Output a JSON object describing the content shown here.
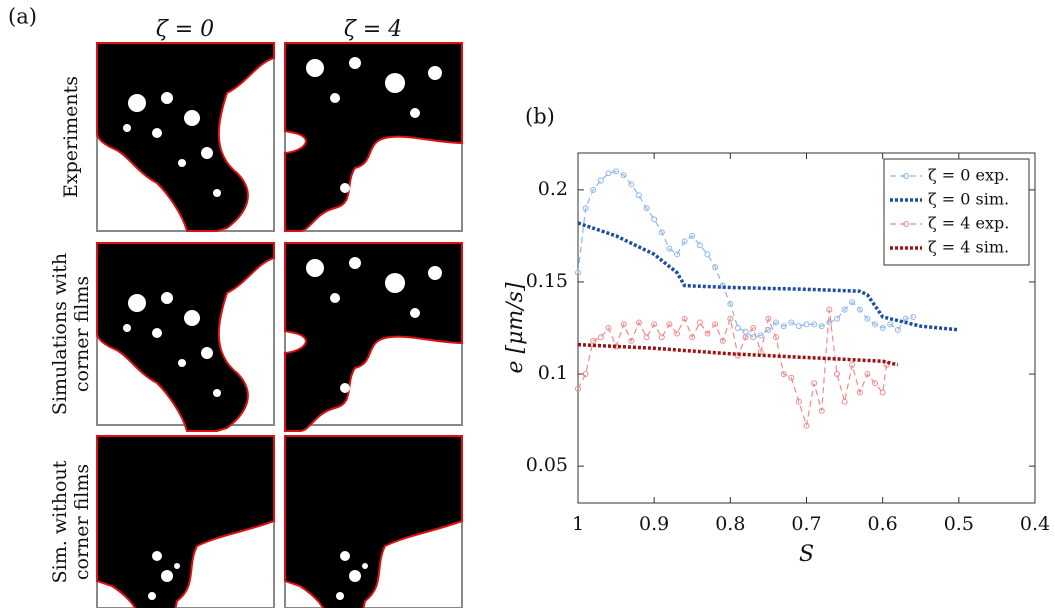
{
  "panel_a": {
    "label": "(a)",
    "columns": [
      "ζ = 0",
      "ζ = 4"
    ],
    "rows": [
      [
        "Experiments"
      ],
      [
        "Simulations with",
        "corner films"
      ],
      [
        "Sim.  without",
        "corner films"
      ]
    ]
  },
  "chart_data": {
    "type": "line",
    "panel_label": "(b)",
    "x_label": "S",
    "y_label": "e [μm/s]",
    "xlim": [
      1,
      0.4
    ],
    "xticks": [
      1,
      0.9,
      0.8,
      0.7,
      0.6,
      0.5,
      0.4
    ],
    "ylim": [
      0.03,
      0.22
    ],
    "yticks": [
      0.05,
      0.1,
      0.15,
      0.2
    ],
    "legend": "upper right",
    "series": [
      {
        "name": "ζ = 0 exp.",
        "color": "#8db6ec",
        "dash": "dashed",
        "marker": "circle",
        "x": [
          1,
          0.99,
          0.98,
          0.97,
          0.96,
          0.95,
          0.94,
          0.93,
          0.92,
          0.91,
          0.9,
          0.89,
          0.88,
          0.87,
          0.86,
          0.85,
          0.84,
          0.83,
          0.82,
          0.81,
          0.8,
          0.79,
          0.78,
          0.77,
          0.76,
          0.75,
          0.74,
          0.73,
          0.72,
          0.71,
          0.7,
          0.69,
          0.68,
          0.67,
          0.66,
          0.65,
          0.64,
          0.63,
          0.62,
          0.61,
          0.6,
          0.59,
          0.58,
          0.57,
          0.56
        ],
        "values": [
          0.155,
          0.19,
          0.2,
          0.205,
          0.209,
          0.21,
          0.208,
          0.203,
          0.197,
          0.19,
          0.184,
          0.177,
          0.168,
          0.165,
          0.172,
          0.175,
          0.17,
          0.165,
          0.158,
          0.148,
          0.138,
          0.125,
          0.123,
          0.12,
          0.121,
          0.124,
          0.128,
          0.126,
          0.128,
          0.126,
          0.127,
          0.127,
          0.126,
          0.128,
          0.13,
          0.135,
          0.139,
          0.135,
          0.13,
          0.127,
          0.125,
          0.127,
          0.124,
          0.13,
          0.131
        ]
      },
      {
        "name": "ζ = 0 sim.",
        "color": "#1f4fa3",
        "dash": "dotted",
        "marker": "none",
        "x": [
          1,
          0.95,
          0.9,
          0.87,
          0.86,
          0.8,
          0.7,
          0.63,
          0.62,
          0.6,
          0.55,
          0.5
        ],
        "values": [
          0.182,
          0.175,
          0.165,
          0.155,
          0.148,
          0.147,
          0.146,
          0.145,
          0.143,
          0.131,
          0.126,
          0.124
        ]
      },
      {
        "name": "ζ = 4 exp.",
        "color": "#f08a8a",
        "dash": "dashed",
        "marker": "circle",
        "x": [
          1,
          0.99,
          0.98,
          0.97,
          0.96,
          0.95,
          0.94,
          0.93,
          0.92,
          0.91,
          0.9,
          0.89,
          0.88,
          0.87,
          0.86,
          0.85,
          0.84,
          0.83,
          0.82,
          0.81,
          0.8,
          0.79,
          0.78,
          0.77,
          0.76,
          0.75,
          0.74,
          0.73,
          0.72,
          0.71,
          0.7,
          0.69,
          0.68,
          0.67,
          0.66,
          0.65,
          0.64,
          0.63,
          0.62,
          0.61,
          0.6,
          0.595
        ],
        "values": [
          0.092,
          0.1,
          0.118,
          0.12,
          0.125,
          0.115,
          0.127,
          0.118,
          0.128,
          0.12,
          0.127,
          0.12,
          0.127,
          0.122,
          0.13,
          0.12,
          0.128,
          0.122,
          0.127,
          0.118,
          0.13,
          0.11,
          0.12,
          0.125,
          0.112,
          0.13,
          0.12,
          0.1,
          0.098,
          0.085,
          0.072,
          0.095,
          0.08,
          0.135,
          0.1,
          0.085,
          0.105,
          0.09,
          0.1,
          0.095,
          0.09,
          0.105
        ]
      },
      {
        "name": "ζ = 4 sim.",
        "color": "#a01212",
        "dash": "dotted",
        "marker": "none",
        "x": [
          1,
          0.9,
          0.8,
          0.7,
          0.6,
          0.58
        ],
        "values": [
          0.116,
          0.114,
          0.111,
          0.109,
          0.107,
          0.105
        ]
      }
    ]
  }
}
